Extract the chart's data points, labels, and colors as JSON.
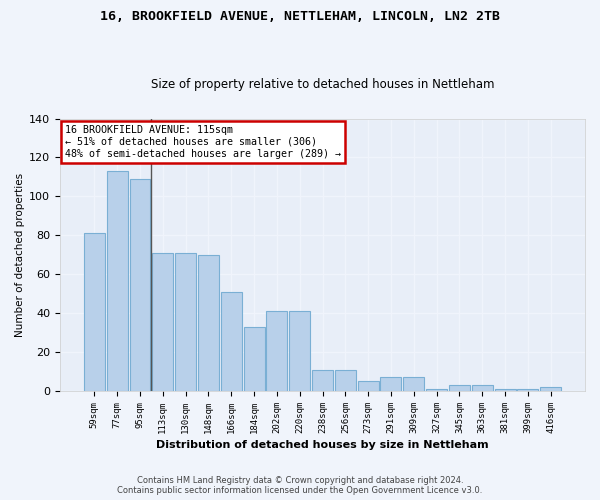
{
  "title_line1": "16, BROOKFIELD AVENUE, NETTLEHAM, LINCOLN, LN2 2TB",
  "title_line2": "Size of property relative to detached houses in Nettleham",
  "xlabel": "Distribution of detached houses by size in Nettleham",
  "ylabel": "Number of detached properties",
  "categories": [
    "59sqm",
    "77sqm",
    "95sqm",
    "113sqm",
    "130sqm",
    "148sqm",
    "166sqm",
    "184sqm",
    "202sqm",
    "220sqm",
    "238sqm",
    "256sqm",
    "273sqm",
    "291sqm",
    "309sqm",
    "327sqm",
    "345sqm",
    "363sqm",
    "381sqm",
    "399sqm",
    "416sqm"
  ],
  "bar_values": [
    81,
    113,
    109,
    71,
    71,
    70,
    51,
    33,
    41,
    41,
    11,
    11,
    5,
    7,
    7,
    1,
    3,
    3,
    1,
    1,
    2
  ],
  "bar_color": "#b8d0ea",
  "bar_edge_color": "#7aafd4",
  "vline_x": 2.5,
  "annotation_lines": [
    "16 BROOKFIELD AVENUE: 115sqm",
    "← 51% of detached houses are smaller (306)",
    "48% of semi-detached houses are larger (289) →"
  ],
  "ylim": [
    0,
    140
  ],
  "yticks": [
    0,
    20,
    40,
    60,
    80,
    100,
    120,
    140
  ],
  "bg_color": "#e8eef8",
  "plot_bg_color": "#dce6f5",
  "grid_color": "#f0f4fc",
  "footer_line1": "Contains HM Land Registry data © Crown copyright and database right 2024.",
  "footer_line2": "Contains public sector information licensed under the Open Government Licence v3.0."
}
